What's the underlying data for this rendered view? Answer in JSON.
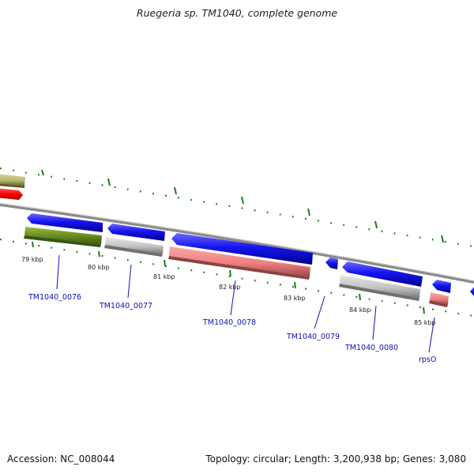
{
  "header": {
    "title": "Ruegeria sp. TM1040, complete genome"
  },
  "footer": {
    "accession": "Accession: NC_008044",
    "topology": "Topology: circular; Length: 3,200,938 bp; Genes: 3,080"
  },
  "scale_labels": [
    "79 kbp",
    "80 kbp",
    "81 kbp",
    "82 kbp",
    "83 kbp",
    "84 kbp",
    "85 kbp"
  ],
  "gene_labels": [
    "TM1040_0076",
    "TM1040_0077",
    "TM1040_0078",
    "TM1040_0079",
    "TM1040_0080",
    "rpsO"
  ],
  "colors": {
    "cds_arrow": "#1515f0",
    "green_feature": "#6b8e23",
    "gray_feature": "#c4c4c4",
    "pink_feature": "#f08080",
    "khaki_feature": "#bdb76b",
    "red_feature": "#ff0000",
    "backbone": "#888888",
    "tick": "#2e7d32",
    "label_link": "#1010b0"
  }
}
